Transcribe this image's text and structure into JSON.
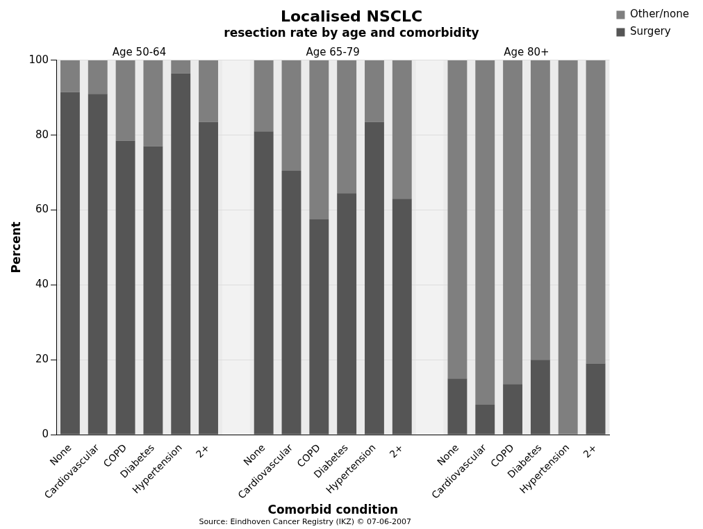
{
  "chart_data": {
    "type": "bar",
    "stacked": true,
    "title": "Localised NSCLC",
    "subtitle": "resection rate by age and comorbidity",
    "xlabel": "Comorbid condition",
    "ylabel": "Percent",
    "categories": [
      "None",
      "Cardiovascular",
      "COPD",
      "Diabetes",
      "Hypertension",
      "2+",
      null,
      "None",
      "Cardiovascular",
      "COPD",
      "Diabetes",
      "Hypertension",
      "2+",
      null,
      "None",
      "Cardiovascular",
      "COPD",
      "Diabetes",
      "Hypertension",
      "2+"
    ],
    "series": [
      {
        "name": "Surgery",
        "color": "#555555",
        "values": [
          91.5,
          91,
          78.5,
          77,
          96.5,
          83.5,
          null,
          81,
          70.5,
          57.5,
          64.5,
          83.5,
          63,
          null,
          15,
          8,
          13.5,
          20,
          0,
          19
        ]
      },
      {
        "name": "Other/none",
        "color": "#7f7f7f",
        "values": [
          8.5,
          9,
          21.5,
          23,
          3.5,
          16.5,
          null,
          19,
          29.5,
          42.5,
          35.5,
          16.5,
          37,
          null,
          85,
          92,
          86.5,
          80,
          100,
          81
        ]
      }
    ],
    "ylim": [
      0,
      100
    ],
    "yticks": [
      0,
      20,
      40,
      60,
      80,
      100
    ],
    "grid": "y",
    "legend": "top right",
    "annotations": [
      "Age 50-64",
      "Age 65-79",
      "Age 80+",
      "Source: Eindhoven Cancer Registry (IKZ) © 07-06-2007"
    ]
  }
}
